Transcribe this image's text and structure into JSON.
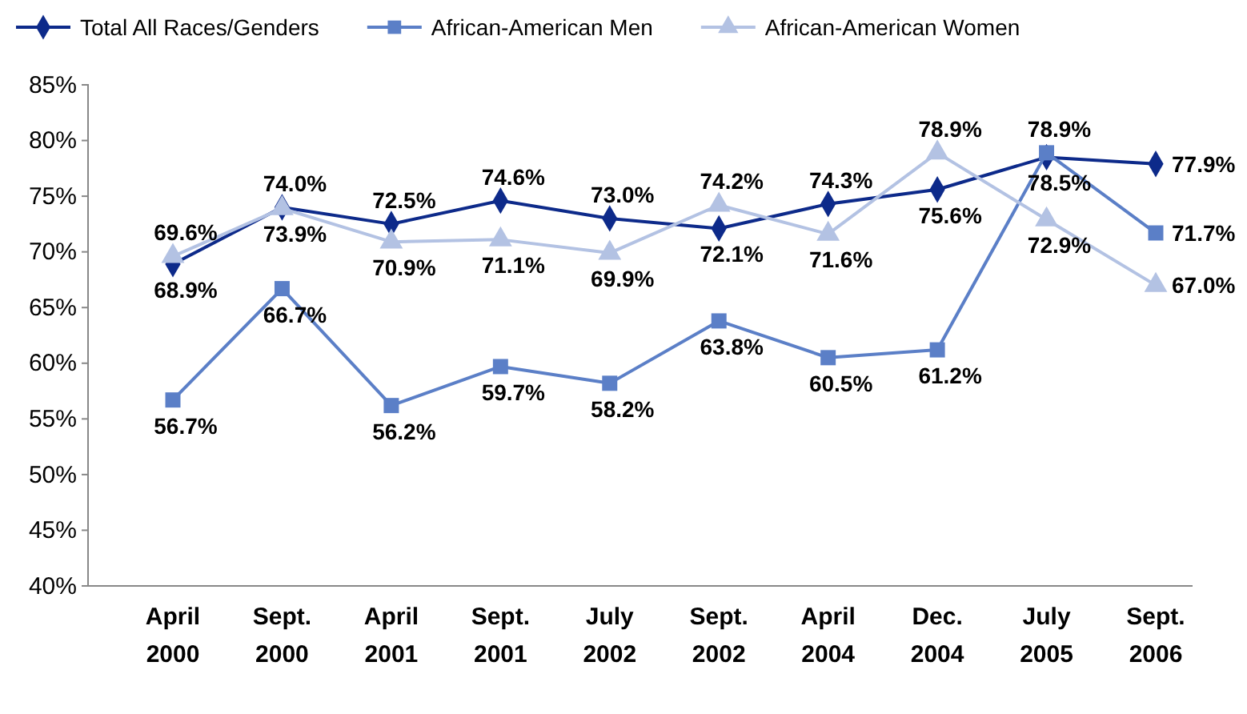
{
  "chart_data": {
    "type": "line",
    "categories": [
      "April 2000",
      "Sept. 2000",
      "April 2001",
      "Sept. 2001",
      "July 2002",
      "Sept. 2002",
      "April 2004",
      "Dec. 2004",
      "July 2005",
      "Sept. 2006"
    ],
    "series": [
      {
        "name": "Total All Races/Genders",
        "color": "#0d2a8a",
        "marker": "diamond",
        "values": [
          68.9,
          74.0,
          72.5,
          74.6,
          73.0,
          72.1,
          74.3,
          75.6,
          78.5,
          77.9
        ],
        "value_labels": [
          "68.9%",
          "74.0%",
          "72.5%",
          "74.6%",
          "73.0%",
          "72.1%",
          "74.3%",
          "75.6%",
          "78.5%",
          "77.9%"
        ]
      },
      {
        "name": "African-American Men",
        "color": "#5b7fc7",
        "marker": "square",
        "values": [
          56.7,
          66.7,
          56.2,
          59.7,
          58.2,
          63.8,
          60.5,
          61.2,
          78.9,
          71.7
        ],
        "value_labels": [
          "56.7%",
          "66.7%",
          "56.2%",
          "59.7%",
          "58.2%",
          "63.8%",
          "60.5%",
          "61.2%",
          "78.9%",
          "71.7%"
        ]
      },
      {
        "name": "African-American Women",
        "color": "#b3c2e3",
        "marker": "triangle",
        "values": [
          69.6,
          73.9,
          70.9,
          71.1,
          69.9,
          74.2,
          71.6,
          78.9,
          72.9,
          67.0
        ],
        "value_labels": [
          "69.6%",
          "73.9%",
          "70.9%",
          "71.1%",
          "69.9%",
          "74.2%",
          "71.6%",
          "78.9%",
          "72.9%",
          "67.0%"
        ]
      }
    ],
    "ylim": [
      40,
      85
    ],
    "yticks": [
      {
        "value": 40,
        "label": "40%"
      },
      {
        "value": 45,
        "label": "45%"
      },
      {
        "value": 50,
        "label": "50%"
      },
      {
        "value": 55,
        "label": "55%"
      },
      {
        "value": 60,
        "label": "60%"
      },
      {
        "value": 65,
        "label": "65%"
      },
      {
        "value": 70,
        "label": "70%"
      },
      {
        "value": 75,
        "label": "75%"
      },
      {
        "value": 80,
        "label": "80%"
      },
      {
        "value": 85,
        "label": "85%"
      }
    ],
    "legend": "top",
    "grid": false
  }
}
